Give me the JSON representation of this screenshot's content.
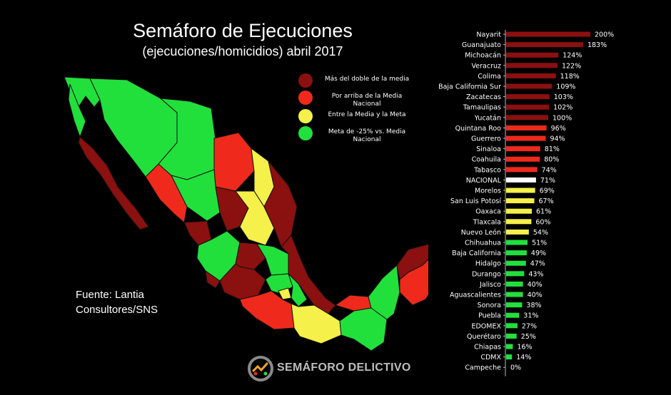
{
  "title": "Semáforo de Ejecuciones",
  "subtitle": "(ejecuciones/homicidios) abril 2017",
  "source_lines": [
    "Fuente: Lantia",
    "Consultores/SNS"
  ],
  "brand": "SEMÁFORO DELICTIVO",
  "colors": {
    "dark_red": "#8b1010",
    "red": "#ef2a1c",
    "yellow": "#f5f04a",
    "green": "#22e03c",
    "white": "#ffffff",
    "background": "#000000"
  },
  "legend": [
    {
      "label": "Más del doble de la media",
      "color": "#8b1010"
    },
    {
      "label": "Por arriba de la Media Nacional",
      "color": "#ef2a1c"
    },
    {
      "label": "Entre la Media y la Meta",
      "color": "#f5f04a"
    },
    {
      "label": "Meta de -25% vs. Media Nacional",
      "color": "#22e03c"
    }
  ],
  "chart_data": {
    "type": "bar",
    "orientation": "horizontal",
    "categories": [
      "Nayarit",
      "Guanajuato",
      "Michoacán",
      "Veracruz",
      "Colima",
      "Baja California Sur",
      "Zacatecas",
      "Tamaulipas",
      "Yucatán",
      "Quintana Roo",
      "Guerrero",
      "Sinaloa",
      "Coahuila",
      "Tabasco",
      "NACIONAL",
      "Morelos",
      "San Luis Potosí",
      "Oaxaca",
      "Tlaxcala",
      "Nuevo León",
      "Chihuahua",
      "Baja California",
      "Hidalgo",
      "Durango",
      "Jalisco",
      "Aguascalientes",
      "Sonora",
      "Puebla",
      "EDOMEX",
      "Querétaro",
      "Chiapas",
      "CDMX",
      "Campeche"
    ],
    "values": [
      200,
      183,
      124,
      122,
      118,
      109,
      103,
      102,
      100,
      96,
      94,
      81,
      80,
      74,
      71,
      69,
      67,
      61,
      60,
      54,
      51,
      49,
      47,
      43,
      40,
      40,
      38,
      31,
      27,
      25,
      16,
      14,
      0
    ],
    "value_labels": [
      "200%",
      "183%",
      "124%",
      "122%",
      "118%",
      "109%",
      "103%",
      "102%",
      "100%",
      "96%",
      "94%",
      "81%",
      "80%",
      "74%",
      "71%",
      "69%",
      "67%",
      "61%",
      "60%",
      "54%",
      "51%",
      "49%",
      "47%",
      "43%",
      "40%",
      "40%",
      "38%",
      "31%",
      "27%",
      "25%",
      "16%",
      "14%",
      "0%"
    ],
    "bar_colors": [
      "#8b1010",
      "#8b1010",
      "#8b1010",
      "#8b1010",
      "#8b1010",
      "#8b1010",
      "#8b1010",
      "#8b1010",
      "#8b1010",
      "#ef2a1c",
      "#ef2a1c",
      "#ef2a1c",
      "#ef2a1c",
      "#ef2a1c",
      "#ffffff",
      "#f5f04a",
      "#f5f04a",
      "#f5f04a",
      "#f5f04a",
      "#f5f04a",
      "#22e03c",
      "#22e03c",
      "#22e03c",
      "#22e03c",
      "#22e03c",
      "#22e03c",
      "#22e03c",
      "#22e03c",
      "#22e03c",
      "#22e03c",
      "#22e03c",
      "#22e03c",
      "#22e03c"
    ],
    "xlim": [
      0,
      200
    ],
    "grid": false,
    "legend_position": "top-center"
  }
}
